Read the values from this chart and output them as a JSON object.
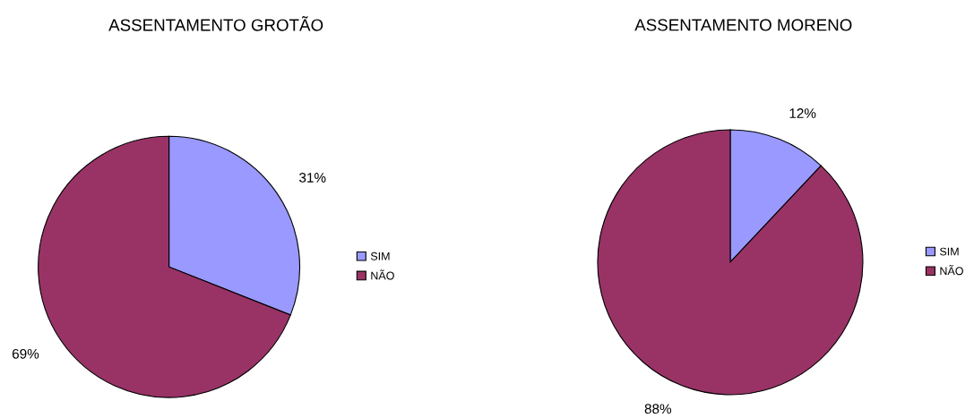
{
  "chart_data": [
    {
      "type": "pie",
      "title": "ASSENTAMENTO GROTÃO",
      "categories": [
        "SIM",
        "NÃO"
      ],
      "values": [
        31,
        69
      ],
      "colors": [
        "#9999ff",
        "#993366"
      ],
      "value_labels": [
        "31%",
        "69%"
      ],
      "legend": "right"
    },
    {
      "type": "pie",
      "title": "ASSENTAMENTO MORENO",
      "categories": [
        "SIM",
        "NÃO"
      ],
      "values": [
        12,
        88
      ],
      "colors": [
        "#9999ff",
        "#993366"
      ],
      "value_labels": [
        "12%",
        "88%"
      ],
      "legend": "right"
    }
  ]
}
